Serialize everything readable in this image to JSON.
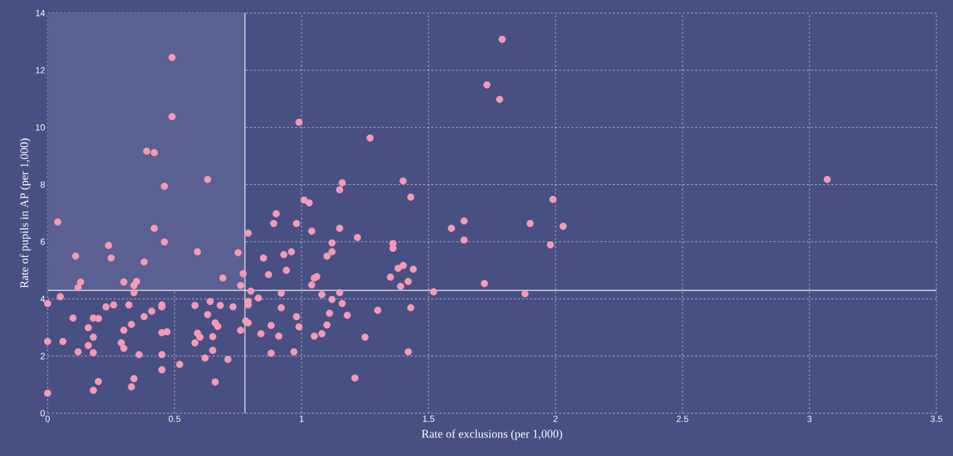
{
  "chart_data": {
    "type": "scatter",
    "xlabel": "Rate of exclusions (per 1,000)",
    "ylabel": "Rate of pupils in AP (per 1,000)",
    "xlim": [
      0,
      3.5
    ],
    "ylim": [
      0,
      14
    ],
    "xticks": [
      0,
      0.5,
      1,
      1.5,
      2,
      2.5,
      3,
      3.5
    ],
    "yticks": [
      0,
      2,
      4,
      6,
      8,
      10,
      12,
      14
    ],
    "grid": true,
    "marker": "circle",
    "ref_lines": [
      {
        "axis": "x",
        "value": 0.777,
        "color": "#ffffff"
      },
      {
        "axis": "y",
        "value": 4.3,
        "color": "#ffffff"
      }
    ],
    "bands": [
      {
        "axis": "x",
        "from": 0,
        "to": 0.777,
        "color": "#5a6091"
      }
    ],
    "series": [
      {
        "color": "#f49ab4",
        "x": [
          0,
          0,
          0,
          0.04,
          0.05,
          0.06,
          0.1,
          0.11,
          0.12,
          0.13,
          0.12,
          0.16,
          0.16,
          0.18,
          0.18,
          0.18,
          0.18,
          0.2,
          0.2,
          0.23,
          0.24,
          0.25,
          0.26,
          0.29,
          0.3,
          0.3,
          0.3,
          0.32,
          0.33,
          0.33,
          0.34,
          0.34,
          0.34,
          0.35,
          0.36,
          0.38,
          0.38,
          0.39,
          0.41,
          0.42,
          0.42,
          0.45,
          0.45,
          0.45,
          0.45,
          0.45,
          0.46,
          0.46,
          0.47,
          0.49,
          0.49,
          0.52,
          0.58,
          0.58,
          0.59,
          0.59,
          0.6,
          0.62,
          0.63,
          0.63,
          0.64,
          0.65,
          0.65,
          0.66,
          0.67,
          0.66,
          0.68,
          0.69,
          0.71,
          0.73,
          0.75,
          0.76,
          0.76,
          0.77,
          0.78,
          0.79,
          0.79,
          0.79,
          0.79,
          0.8,
          0.83,
          0.85,
          0.89,
          0.9,
          0.87,
          0.92,
          0.92,
          0.88,
          0.84,
          0.91,
          0.88,
          0.97,
          0.93,
          0.96,
          0.94,
          0.98,
          1.01,
          1.03,
          1.04,
          0.98,
          0.99,
          1.05,
          1.08,
          1.1,
          1.11,
          1.08,
          1.04,
          1.05,
          1.06,
          1.12,
          1.16,
          1.15,
          1.18,
          1.12,
          1.12,
          1.1,
          1.15,
          1.15,
          1.16,
          1.22,
          1.25,
          1.3,
          1.21,
          1.35,
          1.36,
          1.36,
          1.38,
          1.4,
          1.44,
          1.39,
          1.42,
          1.43,
          1.42,
          1.4,
          1.43,
          1.52,
          1.59,
          1.64,
          1.64,
          1.72,
          1.88,
          1.9,
          1.98,
          1.99,
          2.03,
          3.07,
          1.73,
          1.78,
          1.79,
          0.99,
          1.27
        ],
        "values": [
          3.84,
          2.51,
          0.7,
          6.69,
          4.08,
          2.51,
          3.33,
          5.5,
          4.39,
          4.59,
          2.15,
          2.99,
          2.37,
          3.33,
          2.66,
          2.12,
          0.8,
          3.31,
          1.11,
          3.72,
          5.87,
          5.43,
          3.79,
          2.46,
          4.59,
          2.9,
          2.27,
          3.79,
          3.11,
          0.92,
          1.21,
          4.22,
          4.47,
          4.61,
          2.05,
          3.38,
          5.29,
          9.17,
          3.57,
          6.47,
          9.12,
          3.72,
          3.79,
          2.05,
          1.52,
          2.82,
          5.99,
          7.94,
          2.85,
          12.45,
          10.38,
          1.71,
          2.46,
          3.77,
          5.65,
          2.8,
          2.66,
          1.93,
          8.18,
          3.45,
          3.91,
          2.2,
          2.68,
          3.16,
          3.04,
          1.09,
          3.77,
          4.73,
          1.88,
          3.72,
          5.62,
          4.47,
          2.9,
          4.88,
          3.23,
          3.16,
          6.3,
          3.79,
          3.91,
          4.27,
          4.03,
          5.43,
          6.64,
          6.98,
          4.85,
          4.2,
          3.69,
          3.07,
          2.78,
          2.7,
          2.1,
          2.15,
          5.55,
          5.65,
          5.0,
          6.64,
          7.46,
          7.36,
          6.37,
          3.38,
          3.02,
          2.7,
          2.78,
          3.09,
          3.5,
          4.15,
          4.49,
          4.73,
          4.78,
          3.98,
          3.84,
          4.22,
          3.43,
          5.96,
          5.65,
          5.5,
          6.47,
          7.82,
          8.06,
          6.15,
          2.66,
          3.6,
          1.23,
          4.76,
          5.94,
          5.77,
          5.07,
          5.17,
          5.04,
          4.44,
          4.61,
          3.69,
          2.15,
          8.13,
          7.56,
          4.25,
          6.47,
          6.73,
          6.06,
          4.54,
          4.18,
          6.64,
          5.89,
          7.48,
          6.54,
          8.18,
          11.49,
          10.98,
          13.08,
          10.18,
          9.63
        ]
      }
    ]
  }
}
